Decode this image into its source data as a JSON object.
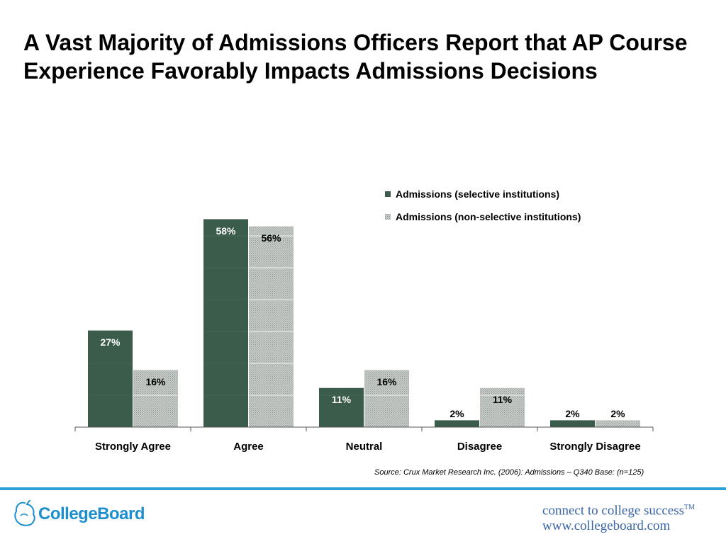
{
  "title": "A Vast Majority of Admissions Officers Report that AP Course Experience Favorably Impacts Admissions Decisions",
  "colors": {
    "selective": "#3b5b4b",
    "non_selective_base": "#c6cbc8",
    "non_selective_dot": "#8e968f",
    "accent_rule": "#2a9fd8",
    "brand": "#1d8fcf"
  },
  "chart_data": {
    "type": "bar",
    "title": "A Vast Majority of Admissions Officers Report that AP Course Experience Favorably Impacts Admissions Decisions",
    "xlabel": "",
    "ylabel": "",
    "ylim": [
      0,
      60
    ],
    "grid": false,
    "legend_position": "top-right",
    "categories": [
      "Strongly Agree",
      "Agree",
      "Neutral",
      "Disagree",
      "Strongly Disagree"
    ],
    "series": [
      {
        "name": "Admissions (selective institutions)",
        "values": [
          27,
          58,
          11,
          2,
          2
        ],
        "labels": [
          "27%",
          "58%",
          "11%",
          "2%",
          "2%"
        ]
      },
      {
        "name": "Admissions (non-selective institutions)",
        "values": [
          16,
          56,
          16,
          11,
          2
        ],
        "labels": [
          "16%",
          "56%",
          "16%",
          "11%",
          "2%"
        ]
      }
    ]
  },
  "source": "Source: Crux Market Research Inc. (2006): Admissions – Q340 Base: (n=125)",
  "footer": {
    "logo_text": "CollegeBoard",
    "tagline_line1": "connect to college success",
    "tagline_tm": "TM",
    "tagline_line2": "www.collegeboard.com"
  }
}
